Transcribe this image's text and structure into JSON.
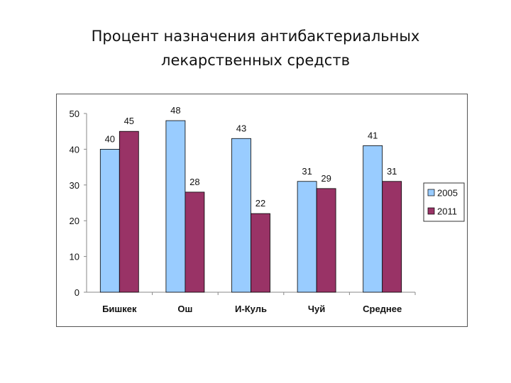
{
  "title_lines": [
    "Процент назначения антибактериальных",
    "лекарственных средств"
  ],
  "chart_data": {
    "type": "bar",
    "title": "Процент назначения антибактериальных лекарственных средств",
    "categories": [
      "Бишкек",
      "Ош",
      "И-Куль",
      "Чуй",
      "Среднее"
    ],
    "series": [
      {
        "name": "2005",
        "values": [
          40,
          48,
          43,
          31,
          41
        ],
        "color": "#99ccff"
      },
      {
        "name": "2011",
        "values": [
          45,
          28,
          22,
          29,
          31
        ],
        "color": "#993366"
      }
    ],
    "ylim": [
      0,
      50
    ],
    "yticks": [
      0,
      10,
      20,
      30,
      40,
      50
    ],
    "grid": false,
    "legend": "right",
    "data_labels": true
  }
}
